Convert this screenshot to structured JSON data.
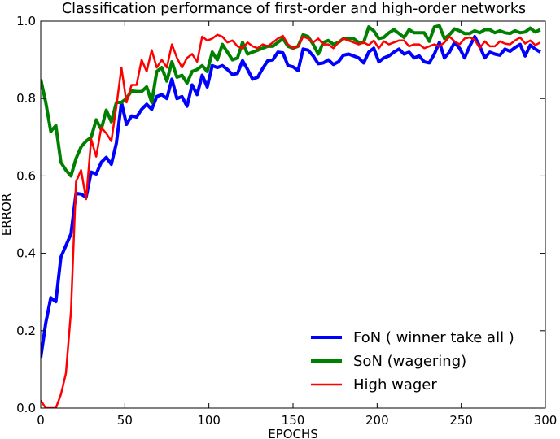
{
  "chart_data": {
    "type": "line",
    "title": "Classification performance of first-order and high-order networks",
    "xlabel": "EPOCHS",
    "ylabel": "ERROR",
    "xlim": [
      0,
      300
    ],
    "ylim": [
      0.0,
      1.0
    ],
    "xticks": [
      0,
      50,
      100,
      150,
      200,
      250,
      300
    ],
    "yticks": [
      0.0,
      0.2,
      0.4,
      0.6,
      0.8,
      1.0
    ],
    "grid": false,
    "legend_position": "lower-right",
    "x": [
      0,
      3,
      6,
      9,
      12,
      15,
      18,
      21,
      24,
      27,
      30,
      33,
      36,
      39,
      42,
      45,
      48,
      51,
      54,
      57,
      60,
      63,
      66,
      69,
      72,
      75,
      78,
      81,
      84,
      87,
      90,
      93,
      96,
      99,
      102,
      105,
      108,
      111,
      114,
      117,
      120,
      123,
      126,
      129,
      132,
      135,
      138,
      141,
      144,
      147,
      150,
      153,
      156,
      159,
      162,
      165,
      168,
      171,
      174,
      177,
      180,
      183,
      186,
      189,
      192,
      195,
      198,
      201,
      204,
      207,
      210,
      213,
      216,
      219,
      222,
      225,
      228,
      231,
      234,
      237,
      240,
      243,
      246,
      249,
      252,
      255,
      258,
      261,
      264,
      267,
      270,
      273,
      276,
      279,
      282,
      285,
      288,
      291,
      294,
      297
    ],
    "series": [
      {
        "name": "FoN ( winner take all )",
        "color": "#0000ff",
        "line_width": 4,
        "values": [
          0.13,
          0.22,
          0.285,
          0.275,
          0.39,
          0.42,
          0.45,
          0.555,
          0.553,
          0.545,
          0.61,
          0.605,
          0.635,
          0.648,
          0.63,
          0.685,
          0.79,
          0.733,
          0.755,
          0.752,
          0.772,
          0.785,
          0.772,
          0.805,
          0.81,
          0.8,
          0.85,
          0.8,
          0.805,
          0.78,
          0.835,
          0.81,
          0.86,
          0.83,
          0.885,
          0.88,
          0.885,
          0.875,
          0.862,
          0.865,
          0.898,
          0.875,
          0.85,
          0.855,
          0.878,
          0.898,
          0.9,
          0.92,
          0.918,
          0.885,
          0.882,
          0.872,
          0.928,
          0.925,
          0.91,
          0.89,
          0.892,
          0.9,
          0.888,
          0.895,
          0.912,
          0.915,
          0.91,
          0.905,
          0.892,
          0.92,
          0.93,
          0.895,
          0.905,
          0.91,
          0.92,
          0.928,
          0.915,
          0.92,
          0.905,
          0.91,
          0.895,
          0.892,
          0.915,
          0.945,
          0.905,
          0.92,
          0.945,
          0.93,
          0.905,
          0.935,
          0.96,
          0.935,
          0.905,
          0.92,
          0.915,
          0.912,
          0.928,
          0.922,
          0.932,
          0.94,
          0.91,
          0.938,
          0.928,
          0.92
        ]
      },
      {
        "name": "SoN (wagering)",
        "color": "#008000",
        "line_width": 4,
        "values": [
          0.85,
          0.79,
          0.715,
          0.73,
          0.635,
          0.615,
          0.6,
          0.645,
          0.675,
          0.69,
          0.7,
          0.745,
          0.72,
          0.77,
          0.74,
          0.79,
          0.79,
          0.8,
          0.82,
          0.818,
          0.818,
          0.83,
          0.79,
          0.87,
          0.88,
          0.845,
          0.895,
          0.855,
          0.86,
          0.84,
          0.87,
          0.875,
          0.885,
          0.87,
          0.92,
          0.9,
          0.94,
          0.92,
          0.9,
          0.905,
          0.945,
          0.915,
          0.92,
          0.925,
          0.93,
          0.935,
          0.935,
          0.945,
          0.955,
          0.935,
          0.93,
          0.935,
          0.965,
          0.96,
          0.94,
          0.915,
          0.945,
          0.95,
          0.94,
          0.945,
          0.955,
          0.955,
          0.955,
          0.945,
          0.945,
          0.985,
          0.975,
          0.955,
          0.958,
          0.97,
          0.978,
          0.968,
          0.958,
          0.978,
          0.97,
          0.97,
          0.97,
          0.948,
          0.985,
          0.988,
          0.955,
          0.965,
          0.98,
          0.975,
          0.968,
          0.968,
          0.975,
          0.97,
          0.978,
          0.978,
          0.97,
          0.975,
          0.97,
          0.968,
          0.975,
          0.97,
          0.972,
          0.982,
          0.972,
          0.978
        ]
      },
      {
        "name": "High wager",
        "color": "#ff0000",
        "line_width": 2.5,
        "values": [
          0.02,
          0.0,
          0.0,
          0.0,
          0.035,
          0.09,
          0.25,
          0.585,
          0.615,
          0.54,
          0.695,
          0.65,
          0.725,
          0.71,
          0.69,
          0.78,
          0.88,
          0.79,
          0.835,
          0.835,
          0.9,
          0.87,
          0.925,
          0.88,
          0.9,
          0.88,
          0.94,
          0.905,
          0.88,
          0.905,
          0.915,
          0.895,
          0.96,
          0.95,
          0.955,
          0.965,
          0.96,
          0.945,
          0.95,
          0.935,
          0.93,
          0.945,
          0.935,
          0.93,
          0.94,
          0.935,
          0.945,
          0.955,
          0.962,
          0.94,
          0.93,
          0.935,
          0.96,
          0.955,
          0.945,
          0.955,
          0.94,
          0.94,
          0.93,
          0.945,
          0.955,
          0.95,
          0.945,
          0.94,
          0.945,
          0.938,
          0.95,
          0.93,
          0.948,
          0.94,
          0.945,
          0.95,
          0.95,
          0.935,
          0.94,
          0.94,
          0.93,
          0.935,
          0.94,
          0.935,
          0.945,
          0.96,
          0.948,
          0.94,
          0.955,
          0.958,
          0.952,
          0.93,
          0.948,
          0.935,
          0.935,
          0.948,
          0.942,
          0.94,
          0.95,
          0.958,
          0.942,
          0.95,
          0.938,
          0.945
        ]
      }
    ]
  }
}
